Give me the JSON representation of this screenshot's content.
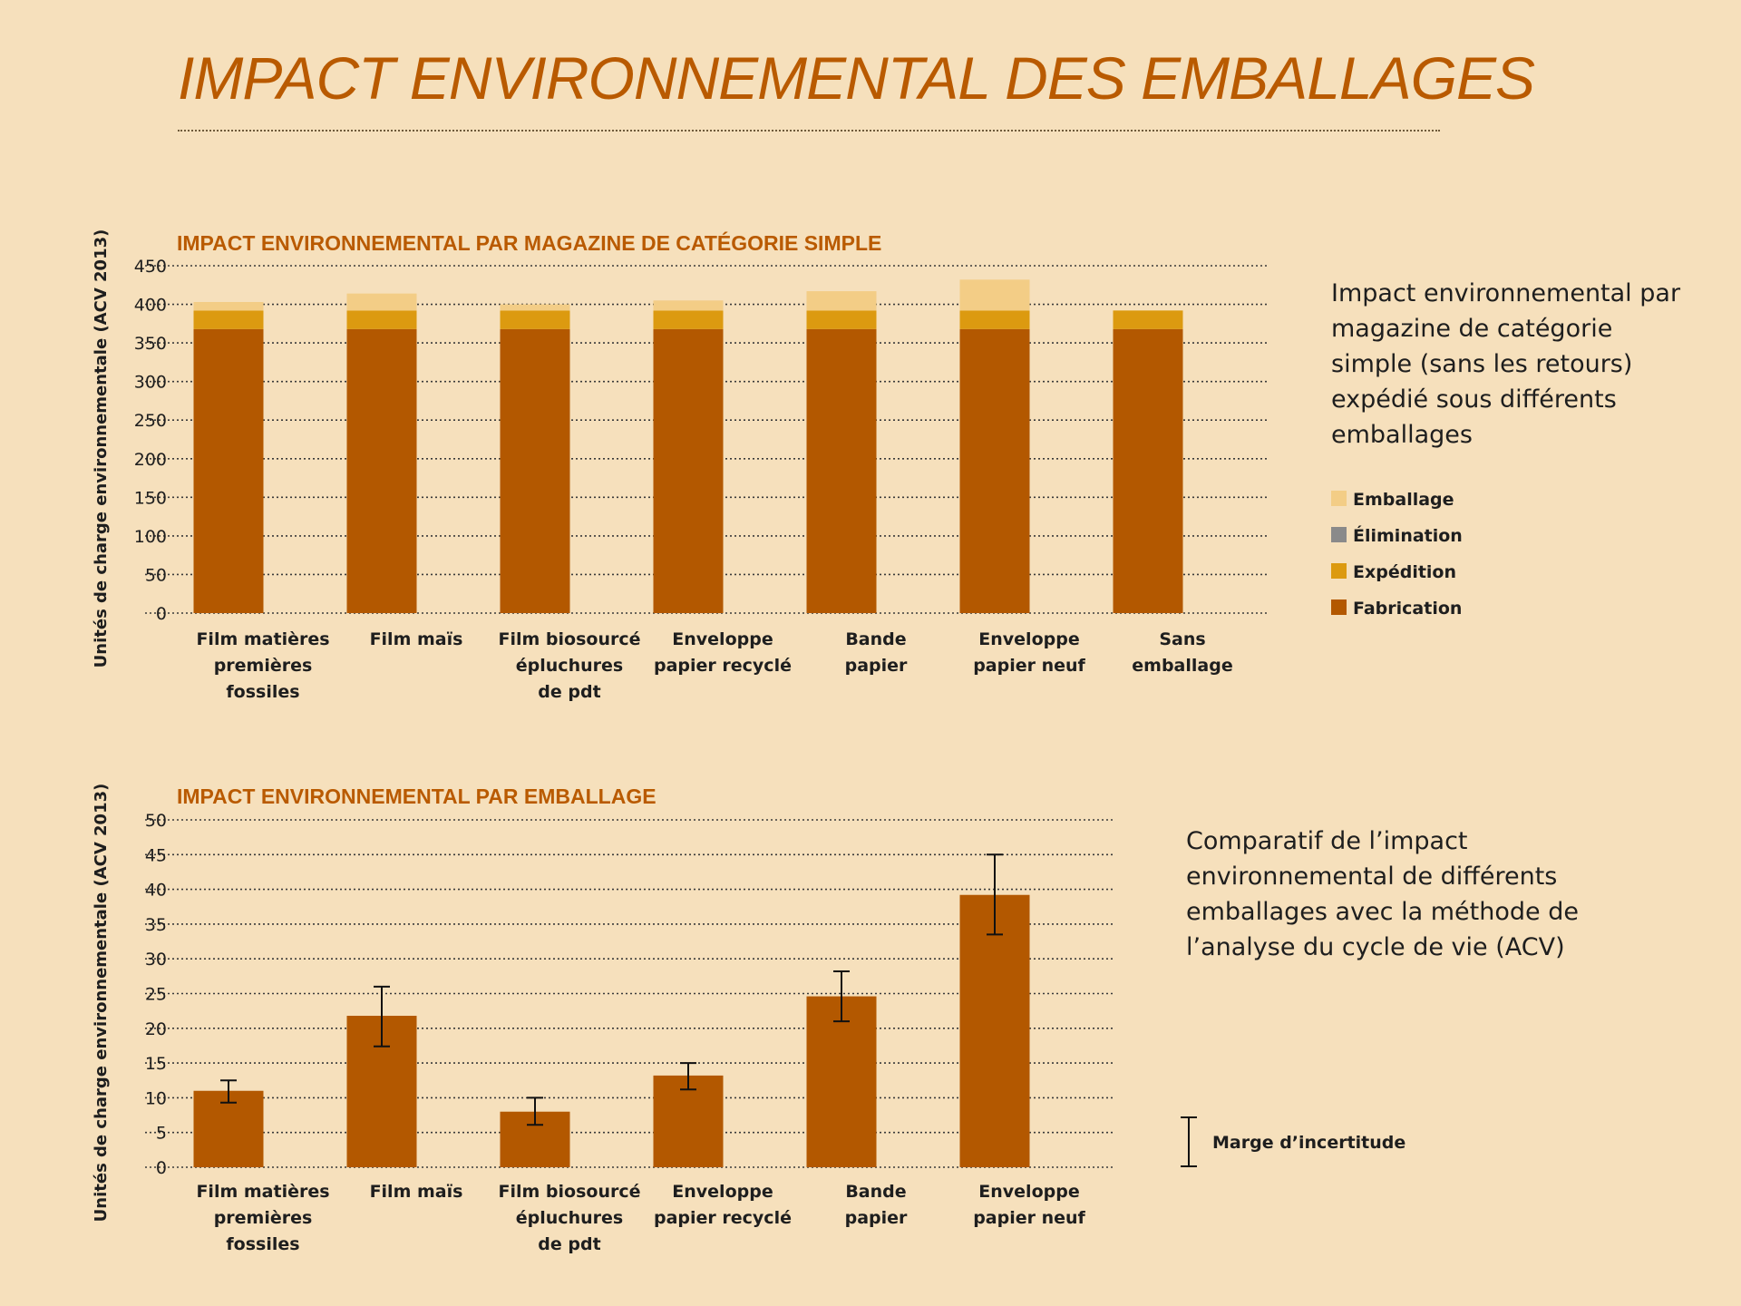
{
  "page": {
    "title": "IMPACT ENVIRONNEMENTAL DES EMBALLAGES"
  },
  "descriptions": {
    "chart1": "Impact environnemental par magazine de catégorie simple (sans les retours) expédié sous différents emballages",
    "chart2": "Comparatif de l’impact environnemental de différents emballages avec la méthode de l’analyse du cycle de vie (ACV)"
  },
  "chart_data": [
    {
      "type": "bar",
      "stacked": true,
      "title": "IMPACT ENVIRONNEMENTAL PAR MAGAZINE DE CATÉGORIE SIMPLE",
      "title_parts": [
        "IMPACT ENVIRONNEMENTAL PAR MAGAZINE DE CATÉGORIE ",
        "SIMPLE"
      ],
      "xlabel": "",
      "ylabel": "Unités de charge environnementale (ACV 2013)",
      "ylim": [
        0,
        450
      ],
      "yticks": [
        0,
        50,
        100,
        150,
        200,
        250,
        300,
        350,
        400,
        450
      ],
      "grid": true,
      "legend_position": "right",
      "categories": [
        [
          "Film matières",
          "premières",
          "fossiles"
        ],
        [
          "Film maïs"
        ],
        [
          "Film biosourcé",
          "épluchures",
          "de pdt"
        ],
        [
          "Enveloppe",
          "papier recyclé"
        ],
        [
          "Bande",
          "papier"
        ],
        [
          "Enveloppe",
          "papier neuf"
        ],
        [
          "Sans",
          "emballage"
        ]
      ],
      "series": [
        {
          "name": "Fabrication",
          "color": "#b35800",
          "values": [
            368,
            368,
            368,
            368,
            368,
            368,
            368
          ]
        },
        {
          "name": "Expédition",
          "color": "#dc9a10",
          "values": [
            24,
            24,
            24,
            24,
            24,
            24,
            24
          ]
        },
        {
          "name": "Élimination",
          "color": "#8a8a8a",
          "values": [
            0,
            0,
            0,
            0,
            0,
            0,
            0
          ]
        },
        {
          "name": "Emballage",
          "color": "#f3cd86",
          "values": [
            11,
            22,
            8,
            13,
            25,
            40,
            0
          ]
        }
      ],
      "legend_order": [
        "Emballage",
        "Élimination",
        "Expédition",
        "Fabrication"
      ]
    },
    {
      "type": "bar",
      "title": "IMPACT ENVIRONNEMENTAL PAR EMBALLAGE",
      "title_parts": [
        "IMPACT ENVIRONNEMENTAL ",
        "PAR EMBALLAGE"
      ],
      "xlabel": "",
      "ylabel": "Unités de charge environnementale (ACV 2013)",
      "ylim": [
        0,
        50
      ],
      "yticks": [
        0,
        5,
        10,
        15,
        20,
        25,
        30,
        35,
        40,
        45,
        50
      ],
      "grid": true,
      "legend_position": "right",
      "categories": [
        [
          "Film matières",
          "premières",
          "fossiles"
        ],
        [
          "Film maïs"
        ],
        [
          "Film biosourcé",
          "épluchures",
          "de pdt"
        ],
        [
          "Enveloppe",
          "papier recyclé"
        ],
        [
          "Bande",
          "papier"
        ],
        [
          "Enveloppe",
          "papier neuf"
        ]
      ],
      "color": "#b35800",
      "values": [
        11,
        21.8,
        8,
        13.2,
        24.6,
        39.2
      ],
      "error_low": [
        9.3,
        17.4,
        6.1,
        11.2,
        21,
        33.5
      ],
      "error_high": [
        12.5,
        26,
        10,
        15,
        28.2,
        45
      ],
      "legend_label": "Marge d’incertitude"
    }
  ]
}
